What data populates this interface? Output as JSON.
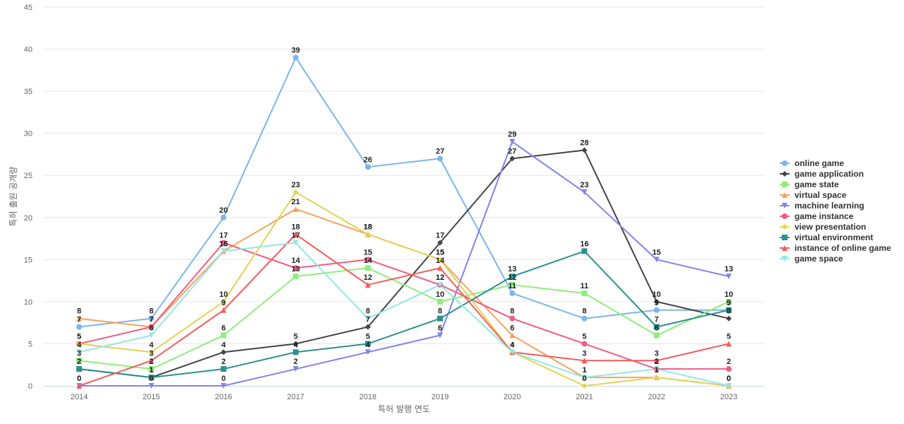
{
  "chart_data": {
    "type": "line",
    "xlabel": "특허 발행 연도",
    "ylabel": "특허 출원 공개량",
    "ylim": [
      0,
      45
    ],
    "yticks": [
      0,
      5,
      10,
      15,
      20,
      25,
      30,
      35,
      40,
      45
    ],
    "x": [
      "2014",
      "2015",
      "2016",
      "2017",
      "2018",
      "2019",
      "2020",
      "2021",
      "2022",
      "2023"
    ],
    "grid": true,
    "legend_position": "right",
    "series": [
      {
        "name": "online game",
        "color": "#7cb5ec",
        "marker": "circle",
        "values": [
          7,
          8,
          20,
          39,
          26,
          27,
          11,
          8,
          9,
          9
        ]
      },
      {
        "name": "game application",
        "color": "#434348",
        "marker": "diamond",
        "values": [
          2,
          1,
          4,
          5,
          7,
          17,
          27,
          28,
          10,
          8
        ]
      },
      {
        "name": "game state",
        "color": "#90ed7d",
        "marker": "square",
        "values": [
          3,
          2,
          6,
          13,
          14,
          10,
          12,
          11,
          6,
          10
        ]
      },
      {
        "name": "virtual space",
        "color": "#f7a35c",
        "marker": "triangle",
        "values": [
          8,
          7,
          16,
          21,
          18,
          15,
          6,
          1,
          1,
          0
        ]
      },
      {
        "name": "machine learning",
        "color": "#8085e9",
        "marker": "triangle-down",
        "values": [
          0,
          0,
          0,
          2,
          4,
          6,
          29,
          23,
          15,
          13
        ]
      },
      {
        "name": "game instance",
        "color": "#f15c80",
        "marker": "circle",
        "values": [
          5,
          7,
          17,
          14,
          15,
          12,
          8,
          5,
          2,
          2
        ]
      },
      {
        "name": "view presentation",
        "color": "#e4d354",
        "marker": "diamond",
        "values": [
          5,
          4,
          10,
          23,
          18,
          15,
          4,
          0,
          1,
          0
        ]
      },
      {
        "name": "virtual environment",
        "color": "#2b908f",
        "marker": "square",
        "values": [
          2,
          1,
          2,
          4,
          5,
          8,
          13,
          16,
          7,
          9
        ]
      },
      {
        "name": "instance of online game",
        "color": "#f45b5b",
        "marker": "triangle",
        "values": [
          0,
          3,
          9,
          18,
          12,
          14,
          4,
          3,
          3,
          5
        ]
      },
      {
        "name": "game space",
        "color": "#91e8e1",
        "marker": "triangle-down",
        "values": [
          4,
          6,
          16,
          17,
          8,
          12,
          4,
          1,
          2,
          0
        ]
      }
    ]
  }
}
